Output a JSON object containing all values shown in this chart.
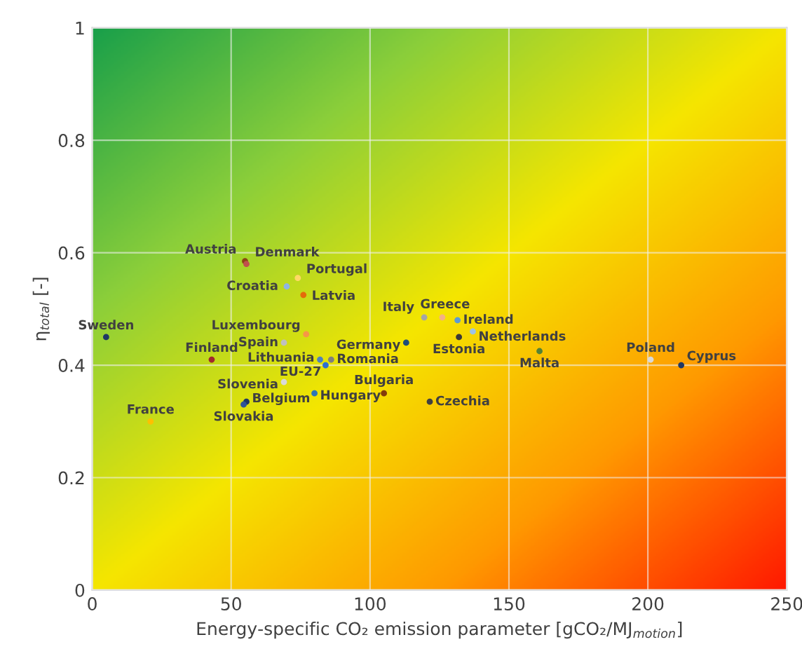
{
  "chart_data": {
    "type": "scatter",
    "xlabel": "Energy-specific CO₂ emission parameter [gCO₂/MJ$_{motion}$]",
    "ylabel": "η$_{total}$ [-]",
    "xlim": [
      0,
      250
    ],
    "xticks": [
      0,
      50,
      100,
      150,
      200,
      250
    ],
    "ylim": [
      0,
      1
    ],
    "yticks": [
      0,
      0.2,
      0.4,
      0.6,
      0.8,
      1
    ],
    "grid": true,
    "legend": false,
    "marker": "circle",
    "series": [
      {
        "name": "Austria",
        "color": "#8b4513",
        "x": [
          55
        ],
        "values": [
          0.585
        ]
      },
      {
        "name": "Denmark",
        "color": "#c0504d",
        "x": [
          55.5
        ],
        "values": [
          0.58
        ]
      },
      {
        "name": "Portugal",
        "color": "#ffd966",
        "x": [
          74
        ],
        "values": [
          0.555
        ]
      },
      {
        "name": "Croatia",
        "color": "#8eb4e3",
        "x": [
          70
        ],
        "values": [
          0.54
        ]
      },
      {
        "name": "Latvia",
        "color": "#e46c0a",
        "x": [
          76
        ],
        "values": [
          0.525
        ]
      },
      {
        "name": "Lithuania",
        "color": "#4f81bd",
        "x": [
          82
        ],
        "values": [
          0.41
        ]
      },
      {
        "name": "Romania",
        "color": "#7f7f7f",
        "x": [
          86
        ],
        "values": [
          0.41
        ]
      },
      {
        "name": "Luxembourg",
        "color": "#f79646",
        "x": [
          77
        ],
        "values": [
          0.455
        ]
      },
      {
        "name": "Spain",
        "color": "#bfbfbf",
        "x": [
          69
        ],
        "values": [
          0.44
        ]
      },
      {
        "name": "EU-27",
        "color": "#2e6fd0",
        "x": [
          84
        ],
        "values": [
          0.4
        ]
      },
      {
        "name": "Slovenia",
        "color": "#d9d9d9",
        "x": [
          69
        ],
        "values": [
          0.37
        ]
      },
      {
        "name": "Hungary",
        "color": "#2e75b6",
        "x": [
          80
        ],
        "values": [
          0.35
        ]
      },
      {
        "name": "Finland",
        "color": "#a0282d",
        "x": [
          43
        ],
        "values": [
          0.41
        ]
      },
      {
        "name": "Sweden",
        "color": "#1f3864",
        "x": [
          5
        ],
        "values": [
          0.45
        ]
      },
      {
        "name": "Belgium",
        "color": "#1f3864",
        "x": [
          55.5
        ],
        "values": [
          0.335
        ]
      },
      {
        "name": "Slovakia",
        "color": "#2f5597",
        "x": [
          54.5
        ],
        "values": [
          0.33
        ]
      },
      {
        "name": "France",
        "color": "#ffc000",
        "x": [
          21
        ],
        "values": [
          0.3
        ]
      },
      {
        "name": "Germany",
        "color": "#1f4e79",
        "x": [
          113
        ],
        "values": [
          0.44
        ]
      },
      {
        "name": "Italy",
        "color": "#a5a5a5",
        "x": [
          119.5
        ],
        "values": [
          0.485
        ]
      },
      {
        "name": "Greece",
        "color": "#f4b183",
        "x": [
          126
        ],
        "values": [
          0.485
        ]
      },
      {
        "name": "Ireland",
        "color": "#5b9bd5",
        "x": [
          131.5
        ],
        "values": [
          0.48
        ]
      },
      {
        "name": "Netherlands",
        "color": "#9dc3e6",
        "x": [
          137
        ],
        "values": [
          0.46
        ]
      },
      {
        "name": "Estonia",
        "color": "#3b3838",
        "x": [
          132
        ],
        "values": [
          0.45
        ]
      },
      {
        "name": "Malta",
        "color": "#548235",
        "x": [
          161
        ],
        "values": [
          0.425
        ]
      },
      {
        "name": "Bulgaria",
        "color": "#843c0c",
        "x": [
          105
        ],
        "values": [
          0.35
        ]
      },
      {
        "name": "Czechia",
        "color": "#404040",
        "x": [
          121.5
        ],
        "values": [
          0.335
        ]
      },
      {
        "name": "Poland",
        "color": "#d9d9d9",
        "x": [
          201
        ],
        "values": [
          0.41
        ]
      },
      {
        "name": "Cyprus",
        "color": "#203864",
        "x": [
          212
        ],
        "values": [
          0.4
        ]
      }
    ]
  }
}
